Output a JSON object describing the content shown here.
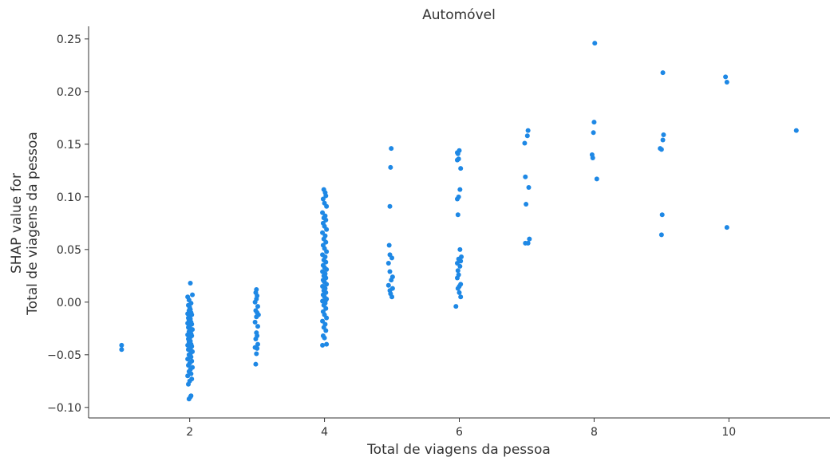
{
  "chart_data": {
    "type": "scatter",
    "title": "Automóvel",
    "xlabel": "Total de viagens da pessoa",
    "ylabel_lines": [
      "SHAP value for",
      "Total de viagens da pessoa"
    ],
    "xlim": [
      0.5,
      11.5
    ],
    "ylim": [
      -0.11,
      0.262
    ],
    "x_ticks": [
      2,
      4,
      6,
      8,
      10
    ],
    "y_ticks": [
      -0.1,
      -0.05,
      0.0,
      0.05,
      0.1,
      0.15,
      0.2,
      0.25
    ],
    "y_tick_labels": [
      "−0.10",
      "−0.05",
      "0.00",
      "0.05",
      "0.10",
      "0.15",
      "0.20",
      "0.25"
    ],
    "grid": false,
    "point_color": "#1e88e5",
    "points": [
      [
        0.99,
        -0.041
      ],
      [
        0.99,
        -0.045
      ],
      [
        1.99,
        -0.092
      ],
      [
        2.01,
        -0.09
      ],
      [
        2.02,
        -0.089
      ],
      [
        1.98,
        -0.078
      ],
      [
        2.0,
        -0.075
      ],
      [
        2.03,
        -0.073
      ],
      [
        1.97,
        -0.07
      ],
      [
        2.02,
        -0.068
      ],
      [
        1.99,
        -0.066
      ],
      [
        2.01,
        -0.064
      ],
      [
        2.04,
        -0.062
      ],
      [
        1.98,
        -0.06
      ],
      [
        2.0,
        -0.058
      ],
      [
        2.03,
        -0.056
      ],
      [
        1.97,
        -0.054
      ],
      [
        2.02,
        -0.052
      ],
      [
        1.99,
        -0.05
      ],
      [
        2.01,
        -0.049
      ],
      [
        2.04,
        -0.047
      ],
      [
        1.98,
        -0.045
      ],
      [
        2.0,
        -0.044
      ],
      [
        2.03,
        -0.042
      ],
      [
        1.97,
        -0.041
      ],
      [
        2.02,
        -0.04
      ],
      [
        1.99,
        -0.038
      ],
      [
        2.01,
        -0.037
      ],
      [
        1.98,
        -0.035
      ],
      [
        2.0,
        -0.034
      ],
      [
        2.03,
        -0.032
      ],
      [
        1.97,
        -0.031
      ],
      [
        2.02,
        -0.03
      ],
      [
        1.99,
        -0.028
      ],
      [
        2.01,
        -0.027
      ],
      [
        2.04,
        -0.026
      ],
      [
        1.98,
        -0.024
      ],
      [
        2.0,
        -0.023
      ],
      [
        2.03,
        -0.021
      ],
      [
        1.97,
        -0.02
      ],
      [
        2.02,
        -0.019
      ],
      [
        1.99,
        -0.017
      ],
      [
        2.01,
        -0.016
      ],
      [
        1.98,
        -0.015
      ],
      [
        2.0,
        -0.013
      ],
      [
        2.03,
        -0.012
      ],
      [
        1.97,
        -0.011
      ],
      [
        2.02,
        -0.01
      ],
      [
        1.99,
        -0.008
      ],
      [
        2.01,
        -0.007
      ],
      [
        2.0,
        -0.005
      ],
      [
        1.98,
        -0.003
      ],
      [
        2.02,
        -0.001
      ],
      [
        1.99,
        0.002
      ],
      [
        1.97,
        0.005
      ],
      [
        2.04,
        0.007
      ],
      [
        2.01,
        0.018
      ],
      [
        2.0,
        -0.042
      ],
      [
        1.99,
        -0.036
      ],
      [
        2.02,
        -0.046
      ],
      [
        2.01,
        -0.033
      ],
      [
        2.99,
        0.012
      ],
      [
        2.98,
        0.009
      ],
      [
        3.0,
        0.006
      ],
      [
        2.99,
        0.003
      ],
      [
        2.97,
        0.0
      ],
      [
        3.01,
        -0.004
      ],
      [
        2.98,
        -0.008
      ],
      [
        3.0,
        -0.01
      ],
      [
        3.02,
        -0.012
      ],
      [
        2.99,
        -0.014
      ],
      [
        2.97,
        -0.019
      ],
      [
        3.01,
        -0.023
      ],
      [
        2.99,
        -0.029
      ],
      [
        3.0,
        -0.032
      ],
      [
        2.98,
        -0.035
      ],
      [
        3.01,
        -0.04
      ],
      [
        2.97,
        -0.043
      ],
      [
        3.0,
        -0.044
      ],
      [
        2.99,
        -0.049
      ],
      [
        2.98,
        -0.059
      ],
      [
        3.99,
        0.107
      ],
      [
        4.01,
        0.104
      ],
      [
        4.02,
        0.101
      ],
      [
        3.98,
        0.098
      ],
      [
        4.0,
        0.094
      ],
      [
        4.03,
        0.091
      ],
      [
        3.97,
        0.085
      ],
      [
        4.01,
        0.082
      ],
      [
        3.99,
        0.08
      ],
      [
        4.02,
        0.078
      ],
      [
        3.98,
        0.075
      ],
      [
        4.0,
        0.072
      ],
      [
        4.03,
        0.069
      ],
      [
        3.97,
        0.066
      ],
      [
        4.01,
        0.063
      ],
      [
        3.99,
        0.06
      ],
      [
        4.02,
        0.057
      ],
      [
        3.98,
        0.054
      ],
      [
        4.0,
        0.051
      ],
      [
        4.03,
        0.048
      ],
      [
        3.97,
        0.045
      ],
      [
        4.01,
        0.043
      ],
      [
        3.99,
        0.04
      ],
      [
        4.02,
        0.038
      ],
      [
        3.98,
        0.035
      ],
      [
        4.0,
        0.033
      ],
      [
        4.03,
        0.031
      ],
      [
        3.97,
        0.029
      ],
      [
        4.01,
        0.027
      ],
      [
        3.99,
        0.025
      ],
      [
        4.02,
        0.023
      ],
      [
        3.98,
        0.021
      ],
      [
        4.0,
        0.019
      ],
      [
        4.03,
        0.017
      ],
      [
        3.97,
        0.015
      ],
      [
        4.01,
        0.013
      ],
      [
        3.99,
        0.011
      ],
      [
        4.02,
        0.009
      ],
      [
        3.98,
        0.007
      ],
      [
        4.0,
        0.005
      ],
      [
        4.03,
        0.003
      ],
      [
        3.97,
        0.001
      ],
      [
        4.01,
        -0.001
      ],
      [
        3.99,
        -0.003
      ],
      [
        4.02,
        -0.006
      ],
      [
        3.98,
        -0.009
      ],
      [
        4.0,
        -0.012
      ],
      [
        4.03,
        -0.015
      ],
      [
        3.97,
        -0.018
      ],
      [
        4.01,
        -0.021
      ],
      [
        3.99,
        -0.024
      ],
      [
        4.02,
        -0.027
      ],
      [
        3.98,
        -0.032
      ],
      [
        4.0,
        -0.034
      ],
      [
        4.03,
        -0.04
      ],
      [
        3.97,
        -0.041
      ],
      [
        4.01,
        0.024
      ],
      [
        3.99,
        0.02
      ],
      [
        4.0,
        0.014
      ],
      [
        4.02,
        0.002
      ],
      [
        4.99,
        0.146
      ],
      [
        4.98,
        0.128
      ],
      [
        4.97,
        0.091
      ],
      [
        4.96,
        0.054
      ],
      [
        4.97,
        0.045
      ],
      [
        5.0,
        0.042
      ],
      [
        4.95,
        0.037
      ],
      [
        4.97,
        0.029
      ],
      [
        5.01,
        0.024
      ],
      [
        4.99,
        0.021
      ],
      [
        4.95,
        0.016
      ],
      [
        5.01,
        0.013
      ],
      [
        4.97,
        0.011
      ],
      [
        4.98,
        0.008
      ],
      [
        5.0,
        0.005
      ],
      [
        5.97,
        0.142
      ],
      [
        6.0,
        0.144
      ],
      [
        5.98,
        0.141
      ],
      [
        5.97,
        0.135
      ],
      [
        5.99,
        0.136
      ],
      [
        6.02,
        0.127
      ],
      [
        6.01,
        0.107
      ],
      [
        5.99,
        0.1
      ],
      [
        5.97,
        0.098
      ],
      [
        5.98,
        0.083
      ],
      [
        6.01,
        0.05
      ],
      [
        6.03,
        0.043
      ],
      [
        5.99,
        0.041
      ],
      [
        6.02,
        0.039
      ],
      [
        5.97,
        0.037
      ],
      [
        6.01,
        0.034
      ],
      [
        5.98,
        0.03
      ],
      [
        5.99,
        0.026
      ],
      [
        5.97,
        0.023
      ],
      [
        6.02,
        0.017
      ],
      [
        6.0,
        0.015
      ],
      [
        5.98,
        0.013
      ],
      [
        6.0,
        0.009
      ],
      [
        6.02,
        0.005
      ],
      [
        5.95,
        -0.004
      ],
      [
        7.02,
        0.163
      ],
      [
        7.01,
        0.158
      ],
      [
        6.97,
        0.151
      ],
      [
        6.98,
        0.119
      ],
      [
        7.03,
        0.109
      ],
      [
        6.99,
        0.093
      ],
      [
        7.04,
        0.06
      ],
      [
        6.98,
        0.056
      ],
      [
        7.02,
        0.056
      ],
      [
        8.01,
        0.246
      ],
      [
        8.0,
        0.171
      ],
      [
        7.99,
        0.161
      ],
      [
        7.97,
        0.14
      ],
      [
        7.98,
        0.137
      ],
      [
        8.04,
        0.117
      ],
      [
        9.02,
        0.218
      ],
      [
        9.03,
        0.159
      ],
      [
        9.02,
        0.154
      ],
      [
        8.98,
        0.146
      ],
      [
        9.0,
        0.145
      ],
      [
        9.01,
        0.083
      ],
      [
        9.0,
        0.064
      ],
      [
        9.95,
        0.214
      ],
      [
        9.97,
        0.209
      ],
      [
        9.97,
        0.071
      ],
      [
        11.0,
        0.163
      ]
    ]
  }
}
